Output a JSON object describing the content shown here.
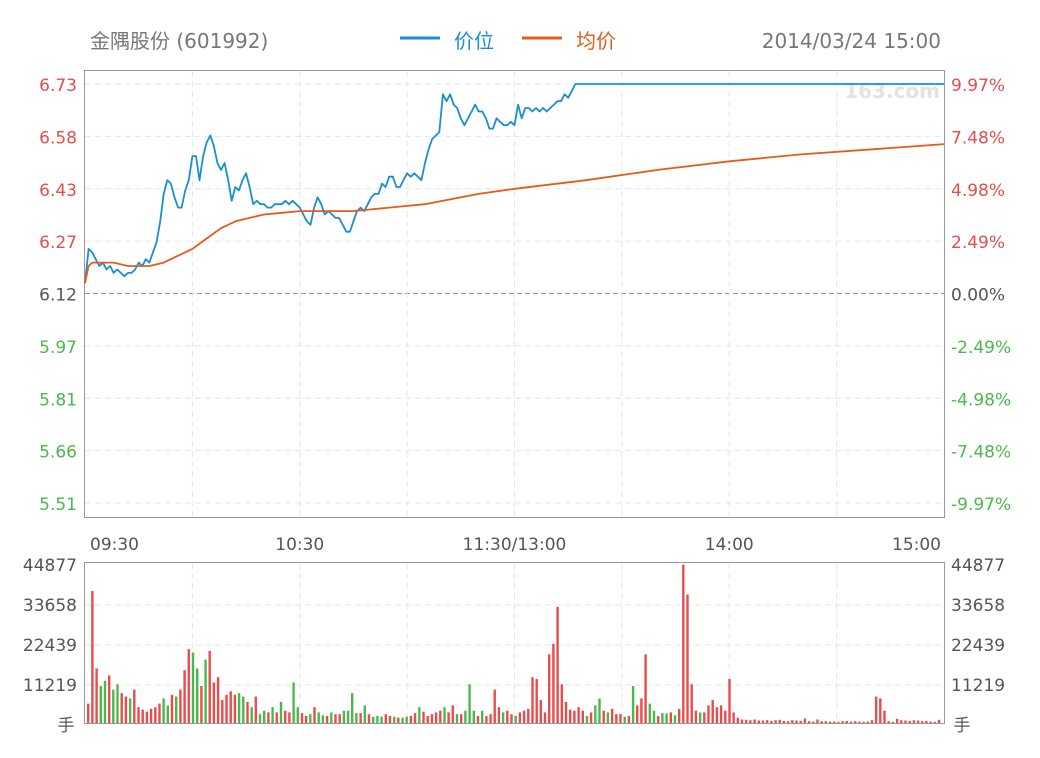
{
  "header": {
    "stock_name": "金隅股份 (601992)",
    "datetime": "2014/03/24 15:00",
    "legend_price": "价位",
    "legend_avg": "均价",
    "watermark": "163.com"
  },
  "colors": {
    "price_line": "#1a8fd0",
    "avg_line": "#e8591a",
    "up": "#e84c4c",
    "down": "#4cb84c",
    "grid": "#e6e6e6",
    "axis_gray": "#999999",
    "up_text": "#e84c4c",
    "down_text": "#4cb84c"
  },
  "chart_data": [
    {
      "type": "line",
      "title": "",
      "prev_close": 6.12,
      "ylim": [
        5.51,
        6.73
      ],
      "y_ticks_left": [
        "6.73",
        "6.58",
        "6.43",
        "6.27",
        "6.12",
        "5.97",
        "5.81",
        "5.66",
        "5.51"
      ],
      "y_ticks_right": [
        "9.97%",
        "7.48%",
        "4.98%",
        "2.49%",
        "0.00%",
        "-2.49%",
        "-4.98%",
        "-7.48%",
        "-9.97%"
      ],
      "x_ticks": [
        {
          "label": "09:30",
          "minute": 0
        },
        {
          "label": "10:30",
          "minute": 60
        },
        {
          "label": "11:30/13:00",
          "minute": 120
        },
        {
          "label": "14:00",
          "minute": 180
        },
        {
          "label": "15:00",
          "minute": 240
        }
      ],
      "minutes_total": 240,
      "series": [
        {
          "name": "价位",
          "points": [
            [
              0,
              6.15
            ],
            [
              1,
              6.25
            ],
            [
              2,
              6.24
            ],
            [
              3,
              6.22
            ],
            [
              4,
              6.2
            ],
            [
              5,
              6.21
            ],
            [
              6,
              6.19
            ],
            [
              7,
              6.2
            ],
            [
              8,
              6.18
            ],
            [
              9,
              6.19
            ],
            [
              10,
              6.18
            ],
            [
              11,
              6.17
            ],
            [
              12,
              6.18
            ],
            [
              13,
              6.18
            ],
            [
              14,
              6.19
            ],
            [
              15,
              6.21
            ],
            [
              16,
              6.2
            ],
            [
              17,
              6.22
            ],
            [
              18,
              6.21
            ],
            [
              19,
              6.24
            ],
            [
              20,
              6.27
            ],
            [
              21,
              6.33
            ],
            [
              22,
              6.41
            ],
            [
              23,
              6.45
            ],
            [
              24,
              6.44
            ],
            [
              25,
              6.4
            ],
            [
              26,
              6.37
            ],
            [
              27,
              6.37
            ],
            [
              28,
              6.42
            ],
            [
              29,
              6.45
            ],
            [
              30,
              6.52
            ],
            [
              31,
              6.52
            ],
            [
              32,
              6.45
            ],
            [
              33,
              6.52
            ],
            [
              34,
              6.56
            ],
            [
              35,
              6.58
            ],
            [
              36,
              6.55
            ],
            [
              37,
              6.5
            ],
            [
              38,
              6.48
            ],
            [
              39,
              6.5
            ],
            [
              40,
              6.45
            ],
            [
              41,
              6.39
            ],
            [
              42,
              6.43
            ],
            [
              43,
              6.42
            ],
            [
              44,
              6.45
            ],
            [
              45,
              6.47
            ],
            [
              46,
              6.43
            ],
            [
              47,
              6.38
            ],
            [
              48,
              6.39
            ],
            [
              49,
              6.38
            ],
            [
              50,
              6.38
            ],
            [
              51,
              6.37
            ],
            [
              52,
              6.37
            ],
            [
              53,
              6.38
            ],
            [
              54,
              6.38
            ],
            [
              55,
              6.38
            ],
            [
              56,
              6.39
            ],
            [
              57,
              6.38
            ],
            [
              58,
              6.39
            ],
            [
              59,
              6.38
            ],
            [
              60,
              6.37
            ],
            [
              61,
              6.35
            ],
            [
              62,
              6.33
            ],
            [
              63,
              6.32
            ],
            [
              64,
              6.37
            ],
            [
              65,
              6.4
            ],
            [
              66,
              6.38
            ],
            [
              67,
              6.35
            ],
            [
              68,
              6.36
            ],
            [
              69,
              6.35
            ],
            [
              70,
              6.34
            ],
            [
              71,
              6.34
            ],
            [
              72,
              6.32
            ],
            [
              73,
              6.3
            ],
            [
              74,
              6.3
            ],
            [
              75,
              6.33
            ],
            [
              76,
              6.36
            ],
            [
              77,
              6.37
            ],
            [
              78,
              6.36
            ],
            [
              79,
              6.38
            ],
            [
              80,
              6.4
            ],
            [
              81,
              6.41
            ],
            [
              82,
              6.41
            ],
            [
              83,
              6.44
            ],
            [
              84,
              6.43
            ],
            [
              85,
              6.46
            ],
            [
              86,
              6.46
            ],
            [
              87,
              6.43
            ],
            [
              88,
              6.43
            ],
            [
              89,
              6.45
            ],
            [
              90,
              6.47
            ],
            [
              91,
              6.46
            ],
            [
              92,
              6.47
            ],
            [
              93,
              6.46
            ],
            [
              94,
              6.45
            ],
            [
              95,
              6.5
            ],
            [
              96,
              6.54
            ],
            [
              97,
              6.57
            ],
            [
              98,
              6.58
            ],
            [
              99,
              6.59
            ],
            [
              100,
              6.7
            ],
            [
              101,
              6.68
            ],
            [
              102,
              6.7
            ],
            [
              103,
              6.67
            ],
            [
              104,
              6.66
            ],
            [
              105,
              6.63
            ],
            [
              106,
              6.61
            ],
            [
              107,
              6.63
            ],
            [
              108,
              6.65
            ],
            [
              109,
              6.67
            ],
            [
              110,
              6.65
            ],
            [
              111,
              6.65
            ],
            [
              112,
              6.63
            ],
            [
              113,
              6.6
            ],
            [
              114,
              6.6
            ],
            [
              115,
              6.63
            ],
            [
              116,
              6.62
            ],
            [
              117,
              6.61
            ],
            [
              118,
              6.61
            ],
            [
              119,
              6.62
            ],
            [
              120,
              6.61
            ],
            [
              121,
              6.67
            ],
            [
              122,
              6.63
            ],
            [
              123,
              6.66
            ],
            [
              124,
              6.66
            ],
            [
              125,
              6.65
            ],
            [
              126,
              6.66
            ],
            [
              127,
              6.65
            ],
            [
              128,
              6.66
            ],
            [
              129,
              6.65
            ],
            [
              130,
              6.66
            ],
            [
              131,
              6.67
            ],
            [
              132,
              6.68
            ],
            [
              133,
              6.68
            ],
            [
              134,
              6.7
            ],
            [
              135,
              6.69
            ],
            [
              136,
              6.71
            ],
            [
              137,
              6.73
            ],
            [
              150,
              6.73
            ],
            [
              180,
              6.73
            ],
            [
              210,
              6.73
            ],
            [
              240,
              6.73
            ]
          ]
        },
        {
          "name": "均价",
          "points": [
            [
              0,
              6.15
            ],
            [
              1,
              6.2
            ],
            [
              2,
              6.21
            ],
            [
              4,
              6.21
            ],
            [
              8,
              6.21
            ],
            [
              12,
              6.2
            ],
            [
              14,
              6.2
            ],
            [
              18,
              6.2
            ],
            [
              22,
              6.21
            ],
            [
              26,
              6.23
            ],
            [
              30,
              6.25
            ],
            [
              34,
              6.28
            ],
            [
              38,
              6.31
            ],
            [
              42,
              6.33
            ],
            [
              46,
              6.34
            ],
            [
              50,
              6.35
            ],
            [
              55,
              6.355
            ],
            [
              60,
              6.36
            ],
            [
              65,
              6.36
            ],
            [
              70,
              6.36
            ],
            [
              75,
              6.36
            ],
            [
              80,
              6.365
            ],
            [
              85,
              6.37
            ],
            [
              90,
              6.375
            ],
            [
              95,
              6.38
            ],
            [
              100,
              6.39
            ],
            [
              110,
              6.41
            ],
            [
              120,
              6.425
            ],
            [
              140,
              6.45
            ],
            [
              160,
              6.48
            ],
            [
              180,
              6.505
            ],
            [
              200,
              6.525
            ],
            [
              220,
              6.54
            ],
            [
              240,
              6.555
            ]
          ]
        }
      ]
    },
    {
      "type": "bar",
      "title": "",
      "ylim": [
        0,
        44877
      ],
      "y_ticks": [
        "44877",
        "33658",
        "22439",
        "11219"
      ],
      "y_unit": "手",
      "values": [
        5500,
        37500,
        15500,
        10500,
        12000,
        13500,
        9500,
        11000,
        8500,
        7500,
        7000,
        9500,
        4500,
        3800,
        3200,
        4000,
        4500,
        5500,
        7000,
        5000,
        8000,
        7500,
        9500,
        15000,
        21000,
        20000,
        15500,
        10500,
        18000,
        20500,
        11500,
        13000,
        6500,
        8000,
        9000,
        8000,
        8500,
        7500,
        6000,
        4500,
        7500,
        2500,
        3500,
        3000,
        4500,
        3000,
        6000,
        3500,
        3000,
        11500,
        4500,
        2800,
        2000,
        2500,
        4500,
        3000,
        2200,
        2000,
        3000,
        2500,
        2500,
        3500,
        3500,
        8500,
        2800,
        2800,
        5000,
        2500,
        1800,
        2000,
        1800,
        2500,
        2000,
        1800,
        1500,
        1500,
        1800,
        2000,
        2800,
        4500,
        3200,
        2000,
        2500,
        3000,
        3500,
        4500,
        3000,
        5000,
        2500,
        2500,
        3500,
        11000,
        3500,
        2000,
        3500,
        2000,
        2500,
        9500,
        4500,
        3000,
        3500,
        2500,
        2000,
        3000,
        3500,
        4000,
        13000,
        12500,
        6500,
        3000,
        19500,
        22500,
        33000,
        11000,
        6000,
        3800,
        3500,
        4500,
        3500,
        2000,
        3000,
        5000,
        7000,
        3500,
        3000,
        4000,
        2500,
        2500,
        1800,
        2000,
        10500,
        5000,
        7000,
        19500,
        5500,
        3500,
        2000,
        2800,
        2700,
        3000,
        2200,
        4000,
        45000,
        36500,
        11000,
        3500,
        3000,
        3000,
        5000,
        6500,
        4500,
        5000,
        3500,
        12500,
        3000,
        1500,
        1000,
        900,
        800,
        1000,
        700,
        700,
        800,
        600,
        800,
        900,
        600,
        500,
        800,
        700,
        600,
        1300,
        500,
        400,
        1000,
        500,
        500,
        400,
        400,
        300,
        500,
        600,
        400,
        500,
        400,
        300,
        400,
        800,
        7500,
        7000,
        3500,
        500,
        300,
        1200,
        800,
        700,
        600,
        800,
        700,
        500,
        600,
        400,
        300,
        900
      ],
      "directions": [
        "u",
        "u",
        "u",
        "d",
        "d",
        "u",
        "d",
        "d",
        "u",
        "u",
        "d",
        "u",
        "u",
        "u",
        "u",
        "u",
        "u",
        "u",
        "d",
        "d",
        "u",
        "d",
        "u",
        "u",
        "u",
        "d",
        "d",
        "u",
        "d",
        "u",
        "u",
        "u",
        "u",
        "u",
        "u",
        "u",
        "d",
        "d",
        "u",
        "d",
        "u",
        "d",
        "d",
        "u",
        "d",
        "u",
        "d",
        "u",
        "u",
        "d",
        "d",
        "u",
        "u",
        "d",
        "u",
        "d",
        "d",
        "u",
        "d",
        "u",
        "u",
        "d",
        "d",
        "d",
        "d",
        "u",
        "d",
        "u",
        "d",
        "d",
        "d",
        "u",
        "u",
        "d",
        "u",
        "d",
        "d",
        "u",
        "u",
        "d",
        "u",
        "u",
        "u",
        "u",
        "u",
        "d",
        "u",
        "u",
        "d",
        "u",
        "d",
        "d",
        "d",
        "u",
        "d",
        "u",
        "u",
        "u",
        "u",
        "d",
        "u",
        "u",
        "d",
        "u",
        "u",
        "u",
        "u",
        "u",
        "u",
        "u",
        "u",
        "u",
        "u",
        "u",
        "u",
        "u",
        "u",
        "u",
        "u",
        "d",
        "u",
        "d",
        "d",
        "u",
        "d",
        "u",
        "u",
        "u",
        "d",
        "u",
        "d",
        "u",
        "u",
        "u",
        "d",
        "d",
        "u",
        "d",
        "d",
        "u",
        "d",
        "u",
        "u",
        "u",
        "u",
        "u",
        "d",
        "u",
        "u",
        "u",
        "u",
        "u",
        "u",
        "u",
        "u",
        "u",
        "u",
        "u",
        "u",
        "u",
        "u",
        "u",
        "u",
        "u",
        "u",
        "u",
        "u",
        "u",
        "u",
        "u",
        "u",
        "u",
        "u",
        "u",
        "u",
        "u",
        "u",
        "u",
        "u",
        "u",
        "u",
        "u",
        "u",
        "u",
        "u",
        "u",
        "u",
        "u",
        "u",
        "u",
        "u",
        "u",
        "u",
        "u",
        "u",
        "u",
        "u",
        "u",
        "u",
        "u",
        "u",
        "u"
      ]
    }
  ]
}
